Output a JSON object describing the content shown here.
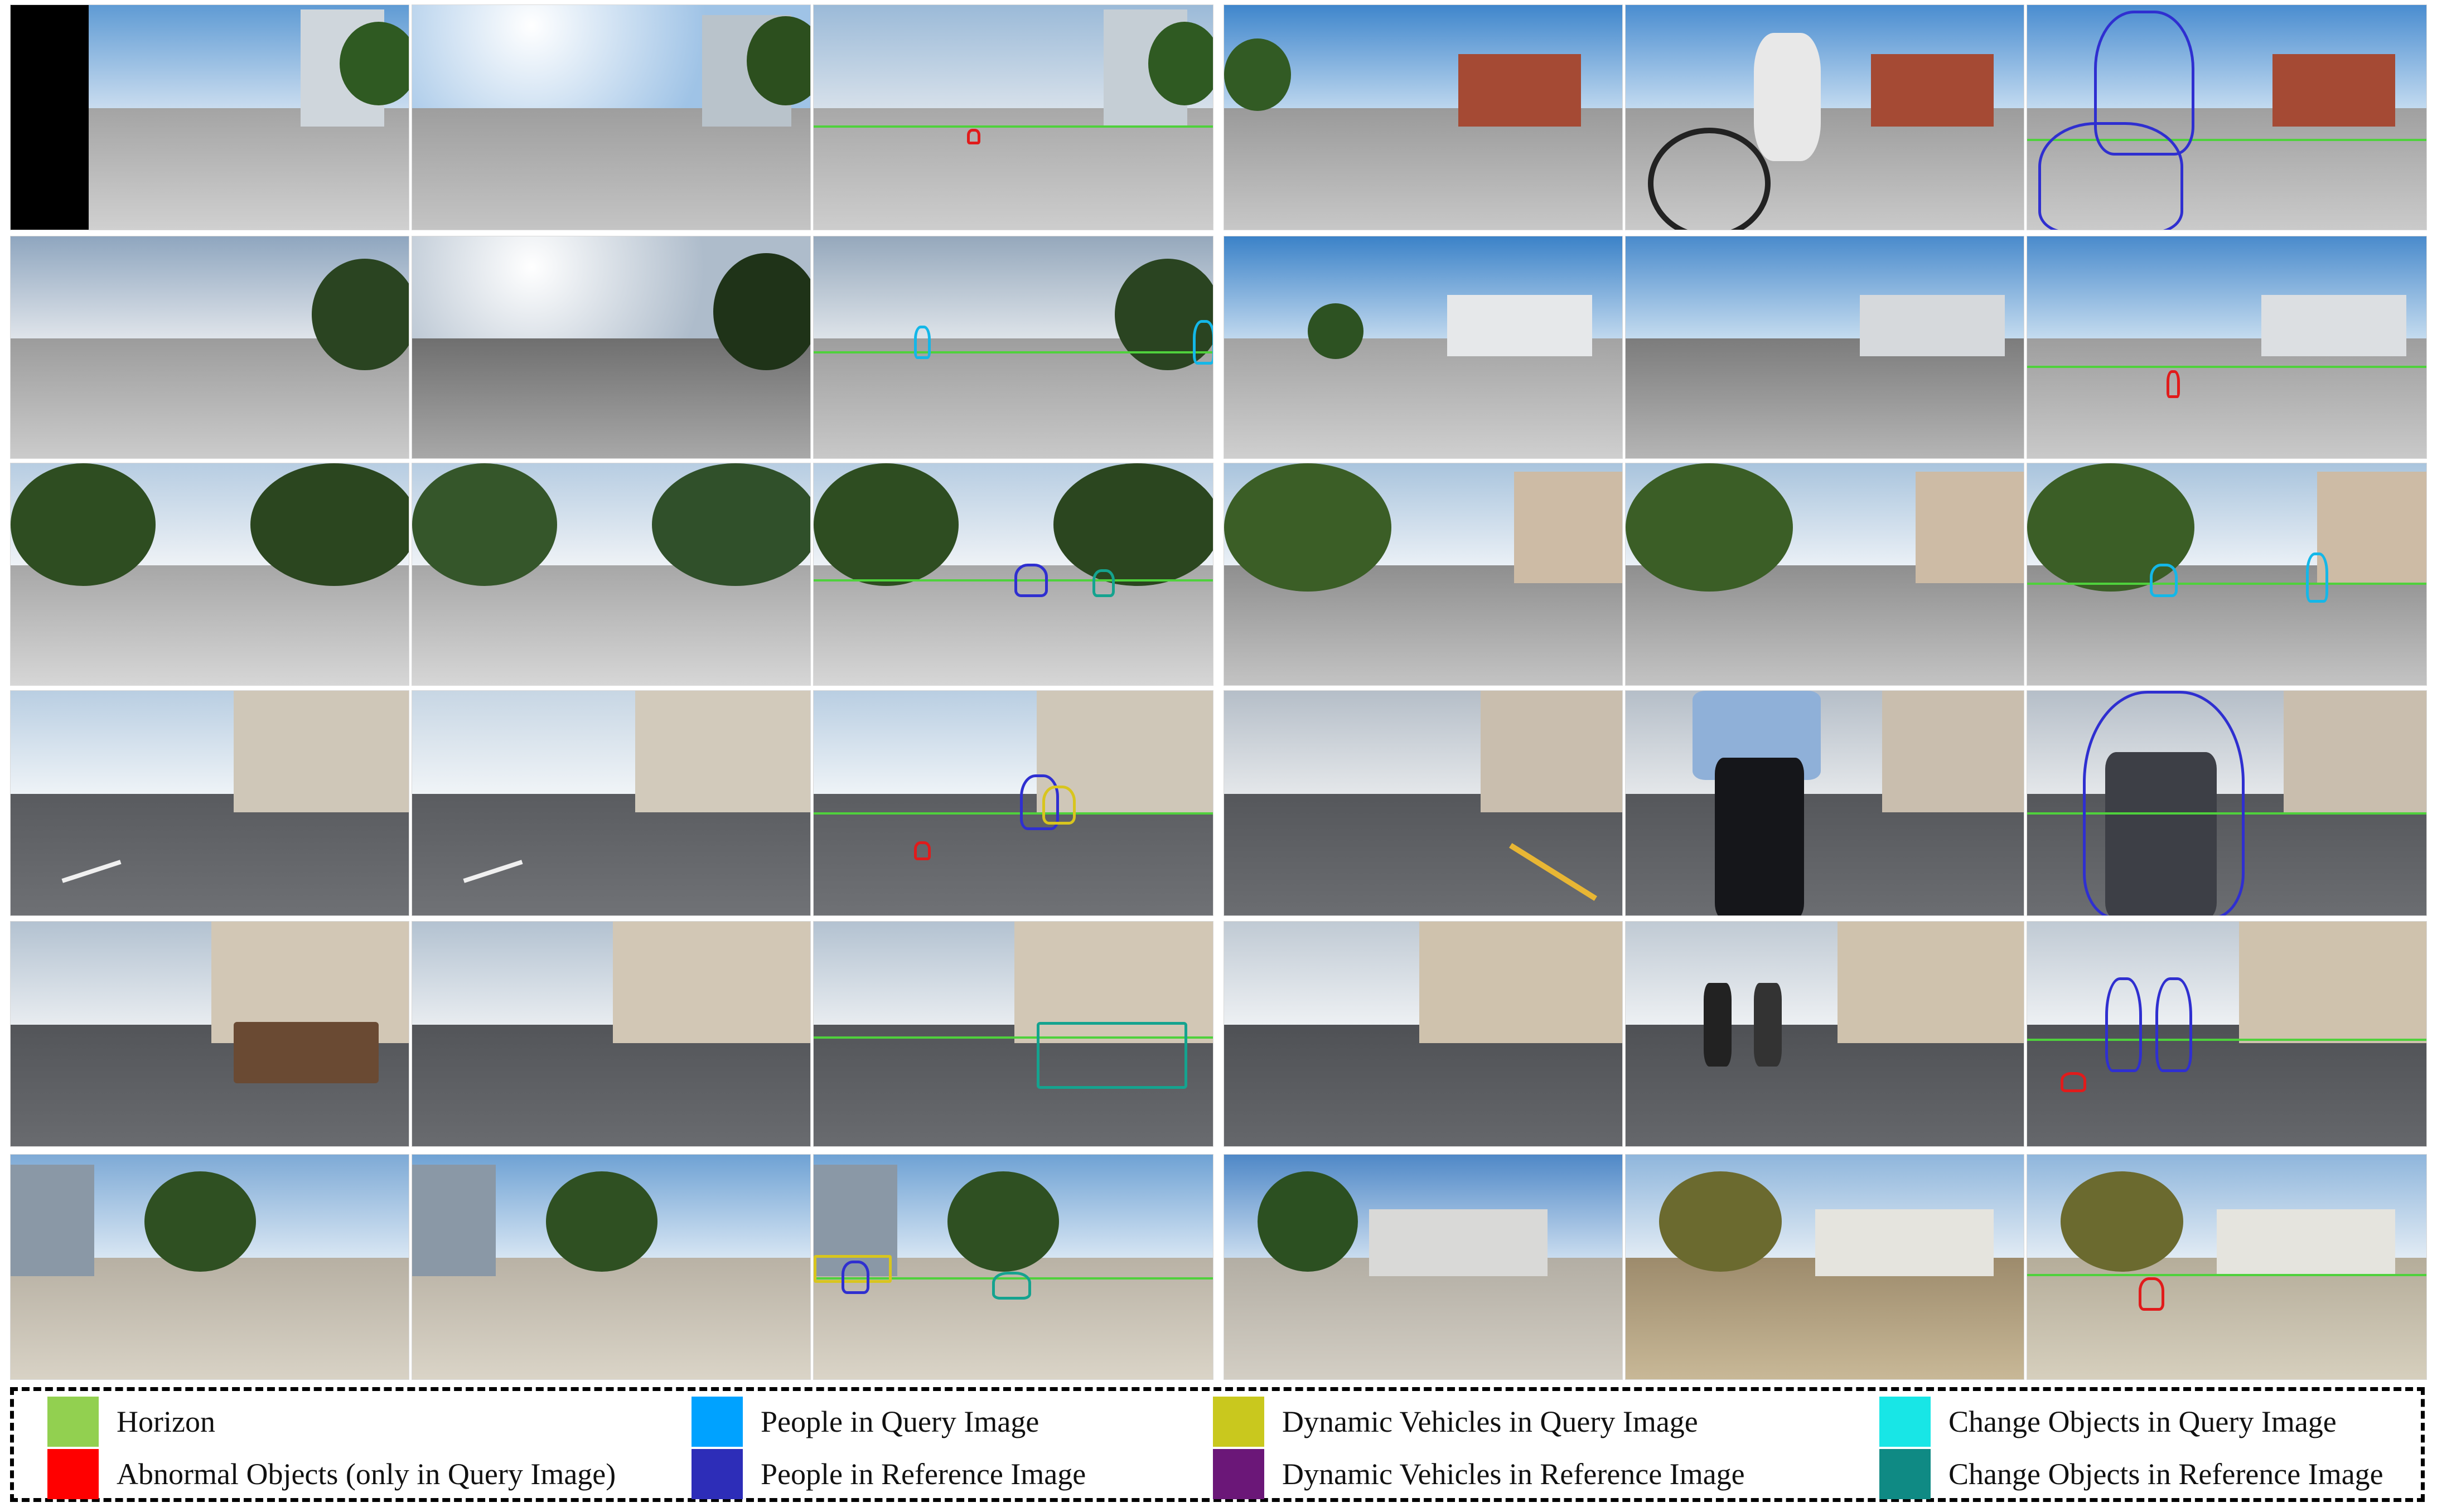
{
  "figure": {
    "legend": [
      {
        "label": "Horizon",
        "color": "#92d050",
        "icon": "horizon-swatch"
      },
      {
        "label": "Abnormal Objects (only in Query Image)",
        "color": "#ff0000",
        "icon": "abnormal-swatch"
      },
      {
        "label": "People in Query Image",
        "color": "#00a2ff",
        "icon": "people-query-swatch"
      },
      {
        "label": "People in Reference Image",
        "color": "#2d2db8",
        "icon": "people-reference-swatch"
      },
      {
        "label": "Dynamic Vehicles in Query Image",
        "color": "#c9c81e",
        "icon": "vehicles-query-swatch"
      },
      {
        "label": "Dynamic Vehicles in  Reference Image",
        "color": "#6b1778",
        "icon": "vehicles-reference-swatch"
      },
      {
        "label": "Change Objects in Query Image",
        "color": "#18e6e6",
        "icon": "change-query-swatch"
      },
      {
        "label": "Change Objects in Reference Image",
        "color": "#0f8a84",
        "icon": "change-reference-swatch"
      }
    ],
    "colors": {
      "horizon_line": "#4fd13c",
      "people_outline": "#2f2fd0",
      "sky_clear": "#7fb2de",
      "sky_cloudy": "#c9ced6",
      "pavement": "#bfbfbf",
      "road": "#5d5f63"
    }
  }
}
